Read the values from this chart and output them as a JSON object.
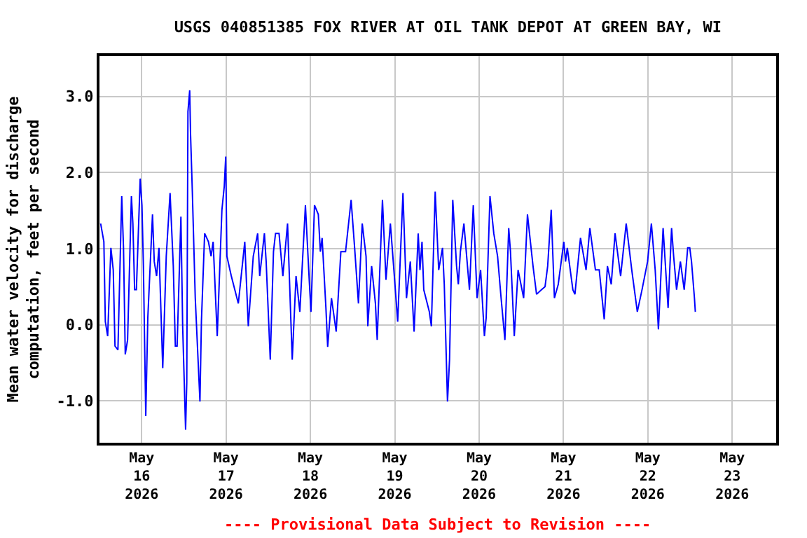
{
  "chart_data": {
    "type": "line",
    "title": "USGS 040851385 FOX RIVER AT OIL TANK DEPOT AT GREEN BAY, WI",
    "ylabel": "Mean water velocity for discharge\ncomputation, feet per second",
    "annotations": [
      "---- Provisional Data Subject to Revision ----"
    ],
    "x": [
      "2026-05-15T12:20",
      "2026-05-15T13:15",
      "2026-05-15T13:40",
      "2026-05-15T14:20",
      "2026-05-15T15:15",
      "2026-05-15T15:55",
      "2026-05-15T16:25",
      "2026-05-15T17:15",
      "2026-05-15T18:20",
      "2026-05-15T18:50",
      "2026-05-15T19:20",
      "2026-05-15T20:00",
      "2026-05-15T21:05",
      "2026-05-15T21:30",
      "2026-05-15T22:00",
      "2026-05-15T22:30",
      "2026-05-15T23:35",
      "2026-05-16T00:05",
      "2026-05-16T00:30",
      "2026-05-16T01:10",
      "2026-05-16T01:45",
      "2026-05-16T03:05",
      "2026-05-16T03:35",
      "2026-05-16T04:15",
      "2026-05-16T04:55",
      "2026-05-16T06:00",
      "2026-05-16T07:00",
      "2026-05-16T08:05",
      "2026-05-16T09:00",
      "2026-05-16T09:35",
      "2026-05-16T10:05",
      "2026-05-16T11:10",
      "2026-05-16T11:40",
      "2026-05-16T12:30",
      "2026-05-16T12:50",
      "2026-05-16T13:10",
      "2026-05-16T13:40",
      "2026-05-16T13:55",
      "2026-05-16T14:25",
      "2026-05-16T15:15",
      "2026-05-16T16:35",
      "2026-05-16T17:00",
      "2026-05-16T17:55",
      "2026-05-16T19:00",
      "2026-05-16T19:45",
      "2026-05-16T20:20",
      "2026-05-16T21:30",
      "2026-05-16T22:50",
      "2026-05-16T23:30",
      "2026-05-16T23:55",
      "2026-05-17T00:15",
      "2026-05-17T01:30",
      "2026-05-17T03:30",
      "2026-05-17T05:20",
      "2026-05-17T06:20",
      "2026-05-17T07:45",
      "2026-05-17T09:00",
      "2026-05-17T09:35",
      "2026-05-17T10:55",
      "2026-05-17T11:25",
      "2026-05-17T12:35",
      "2026-05-17T13:30",
      "2026-05-17T14:05",
      "2026-05-17T15:05",
      "2026-05-17T16:10",
      "2026-05-17T17:30",
      "2026-05-17T18:50",
      "2026-05-17T19:55",
      "2026-05-17T21:00",
      "2026-05-17T22:35",
      "2026-05-17T23:40",
      "2026-05-18T00:10",
      "2026-05-18T01:10",
      "2026-05-18T02:15",
      "2026-05-18T02:50",
      "2026-05-18T03:20",
      "2026-05-18T04:25",
      "2026-05-18T04:55",
      "2026-05-18T06:00",
      "2026-05-18T07:20",
      "2026-05-18T08:40",
      "2026-05-18T10:00",
      "2026-05-18T11:35",
      "2026-05-18T12:35",
      "2026-05-18T13:40",
      "2026-05-18T14:45",
      "2026-05-18T15:50",
      "2026-05-18T16:20",
      "2026-05-18T17:25",
      "2026-05-18T18:30",
      "2026-05-18T19:00",
      "2026-05-18T20:30",
      "2026-05-18T21:30",
      "2026-05-18T22:45",
      "2026-05-18T23:45",
      "2026-05-19T00:50",
      "2026-05-19T02:20",
      "2026-05-19T03:20",
      "2026-05-19T04:25",
      "2026-05-19T05:30",
      "2026-05-19T06:40",
      "2026-05-19T07:10",
      "2026-05-19T07:45",
      "2026-05-19T08:15",
      "2026-05-19T09:50",
      "2026-05-19T10:25",
      "2026-05-19T11:30",
      "2026-05-19T12:30",
      "2026-05-19T13:35",
      "2026-05-19T14:05",
      "2026-05-19T15:00",
      "2026-05-19T15:35",
      "2026-05-19T16:30",
      "2026-05-19T17:35",
      "2026-05-19T18:05",
      "2026-05-19T18:40",
      "2026-05-19T19:40",
      "2026-05-19T21:15",
      "2026-05-19T22:20",
      "2026-05-19T23:25",
      "2026-05-20T00:25",
      "2026-05-20T01:30",
      "2026-05-20T02:00",
      "2026-05-20T03:05",
      "2026-05-20T04:10",
      "2026-05-20T05:15",
      "2026-05-20T06:15",
      "2026-05-20T07:20",
      "2026-05-20T08:25",
      "2026-05-20T08:55",
      "2026-05-20T10:00",
      "2026-05-20T11:05",
      "2026-05-20T12:40",
      "2026-05-20T13:45",
      "2026-05-20T15:20",
      "2026-05-20T16:20",
      "2026-05-20T17:45",
      "2026-05-20T18:45",
      "2026-05-20T19:30",
      "2026-05-20T20:30",
      "2026-05-20T21:25",
      "2026-05-20T22:30",
      "2026-05-21T00:05",
      "2026-05-21T00:35",
      "2026-05-21T01:05",
      "2026-05-21T02:40",
      "2026-05-21T03:15",
      "2026-05-21T04:50",
      "2026-05-21T06:25",
      "2026-05-21T07:30",
      "2026-05-21T09:05",
      "2026-05-21T10:10",
      "2026-05-21T11:35",
      "2026-05-21T12:30",
      "2026-05-21T13:35",
      "2026-05-21T14:40",
      "2026-05-21T16:15",
      "2026-05-21T17:50",
      "2026-05-21T19:25",
      "2026-05-21T21:00",
      "2026-05-21T22:20",
      "2026-05-21T23:55",
      "2026-05-22T01:00",
      "2026-05-22T02:05",
      "2026-05-22T03:00",
      "2026-05-22T03:25",
      "2026-05-22T04:20",
      "2026-05-22T05:15",
      "2026-05-22T05:45",
      "2026-05-22T06:45",
      "2026-05-22T07:20",
      "2026-05-22T08:10",
      "2026-05-22T09:15",
      "2026-05-22T10:20",
      "2026-05-22T11:20",
      "2026-05-22T11:55",
      "2026-05-22T12:25",
      "2026-05-22T12:50",
      "2026-05-22T13:15",
      "2026-05-22T13:30"
    ],
    "series": [
      {
        "color": "#0000ff",
        "values": [
          1.33,
          1.09,
          0.04,
          -0.15,
          1.01,
          0.72,
          -0.28,
          -0.33,
          1.69,
          1.01,
          -0.39,
          -0.2,
          1.69,
          1.33,
          0.46,
          0.46,
          1.92,
          1.57,
          0.77,
          -1.2,
          0.09,
          1.45,
          0.83,
          0.64,
          1.01,
          -0.57,
          0.9,
          1.73,
          0.77,
          -0.28,
          -0.28,
          1.42,
          -0.02,
          -1.38,
          -0.76,
          2.8,
          3.08,
          2.49,
          1.75,
          0.35,
          -1.01,
          0.04,
          1.2,
          1.09,
          0.9,
          1.09,
          -0.15,
          1.51,
          1.82,
          2.21,
          0.9,
          0.64,
          0.28,
          1.09,
          -0.02,
          0.9,
          1.2,
          0.64,
          1.2,
          0.83,
          -0.46,
          0.96,
          1.2,
          1.2,
          0.64,
          1.33,
          -0.46,
          0.64,
          0.17,
          1.57,
          0.59,
          0.17,
          1.57,
          1.45,
          0.96,
          1.14,
          0.22,
          -0.29,
          0.35,
          -0.09,
          0.96,
          0.96,
          1.64,
          1.01,
          0.28,
          1.33,
          0.9,
          -0.02,
          0.77,
          0.28,
          -0.2,
          1.64,
          0.59,
          1.33,
          0.72,
          0.04,
          1.73,
          0.35,
          0.83,
          -0.09,
          1.2,
          0.72,
          1.09,
          0.46,
          0.17,
          -0.02,
          1.75,
          0.72,
          1.01,
          0.53,
          -1.01,
          -0.46,
          1.64,
          0.77,
          0.53,
          0.96,
          1.33,
          0.46,
          1.57,
          0.35,
          0.72,
          -0.15,
          0.09,
          1.69,
          1.2,
          0.9,
          0.35,
          -0.2,
          1.27,
          0.96,
          -0.15,
          0.72,
          0.35,
          1.45,
          0.77,
          0.4,
          0.46,
          0.5,
          0.77,
          1.51,
          0.35,
          0.53,
          1.09,
          0.83,
          1.01,
          0.46,
          0.4,
          1.14,
          0.72,
          1.27,
          0.72,
          0.72,
          0.07,
          0.77,
          0.53,
          1.2,
          0.64,
          1.33,
          0.72,
          0.17,
          0.46,
          0.83,
          1.33,
          0.72,
          -0.06,
          0.35,
          1.27,
          0.59,
          0.22,
          1.27,
          0.9,
          0.46,
          0.83,
          0.46,
          1.01,
          1.01,
          0.83,
          0.59,
          0.35,
          0.17
        ]
      }
    ],
    "xlim": [
      "2026-05-15T12:00",
      "2026-05-23T12:30"
    ],
    "xticks": [
      {
        "value": "2026-05-16",
        "label": "May\n16\n2026"
      },
      {
        "value": "2026-05-17",
        "label": "May\n17\n2026"
      },
      {
        "value": "2026-05-18",
        "label": "May\n18\n2026"
      },
      {
        "value": "2026-05-19",
        "label": "May\n19\n2026"
      },
      {
        "value": "2026-05-20",
        "label": "May\n20\n2026"
      },
      {
        "value": "2026-05-21",
        "label": "May\n21\n2026"
      },
      {
        "value": "2026-05-22",
        "label": "May\n22\n2026"
      },
      {
        "value": "2026-05-23",
        "label": "May\n23\n2026"
      }
    ],
    "ylim": [
      -1.55,
      3.53
    ],
    "yticks": [
      {
        "value": -1,
        "label": "-1.0"
      },
      {
        "value": 0,
        "label": "0.0"
      },
      {
        "value": 1,
        "label": "1.0"
      },
      {
        "value": 2,
        "label": "2.0"
      },
      {
        "value": 3,
        "label": "3.0"
      }
    ],
    "grid": true,
    "marker": "none",
    "line_style": "solid"
  }
}
